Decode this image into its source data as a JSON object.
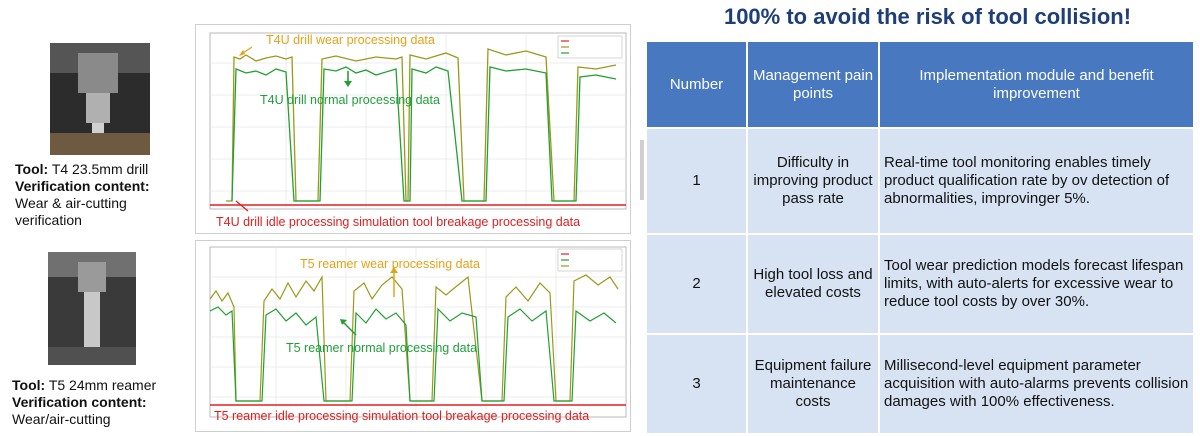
{
  "title": "100% to avoid the risk of tool collision!",
  "left_cases": [
    {
      "tool_label": "Tool:",
      "tool_value": "T4 23.5mm drill",
      "verify_label": "Verification content:",
      "verify_value_1": "Wear & air-cutting",
      "verify_value_2": "verification"
    },
    {
      "tool_label": "Tool:",
      "tool_value": "T5  24mm reamer",
      "verify_label": "Verification content:",
      "verify_value_1": "Wear/air-cutting",
      "verify_value_2": ""
    }
  ],
  "charts": [
    {
      "wear_label": "T4U drill wear processing data",
      "normal_label": "T4U drill normal processing data",
      "idle_label": "T4U drill idle processing simulation tool breakage processing data",
      "colors": {
        "wear": "#9a9a1a",
        "normal": "#22a032",
        "idle": "#e02020",
        "wear_text": "#e6a217",
        "normal_text": "#1fa03a"
      }
    },
    {
      "wear_label": "T5 reamer wear processing data",
      "normal_label": "T5 reamer normal processing data",
      "idle_label": "T5 reamer idle processing simulation tool breakage processing data",
      "colors": {
        "wear": "#9a9a1a",
        "normal": "#22a032",
        "idle": "#e02020",
        "wear_text": "#e6a217",
        "normal_text": "#1fa03a"
      }
    }
  ],
  "table": {
    "headers": [
      "Number",
      "Management pain points",
      "Implementation module and benefit improvement"
    ],
    "rows": [
      {
        "number": "1",
        "pain": "Difficulty in improving product pass rate",
        "impl": "Real-time tool monitoring enables timely product qualification rate by ov detection of abnormalities, improvinger 5%."
      },
      {
        "number": "2",
        "pain": "High tool loss and elevated costs",
        "impl": "Tool wear prediction models forecast lifespan limits, with auto-alerts for excessive wear to reduce tool costs by over 30%."
      },
      {
        "number": "3",
        "pain": "Equipment failure maintenance costs",
        "impl": "Millisecond-level equipment parameter acquisition with auto-alarms prevents collision damages with 100% effectiveness."
      }
    ]
  },
  "theme": {
    "header_bg": "#4878c0",
    "cell_bg": "#d7e3f3",
    "title_color": "#1d3e78"
  }
}
